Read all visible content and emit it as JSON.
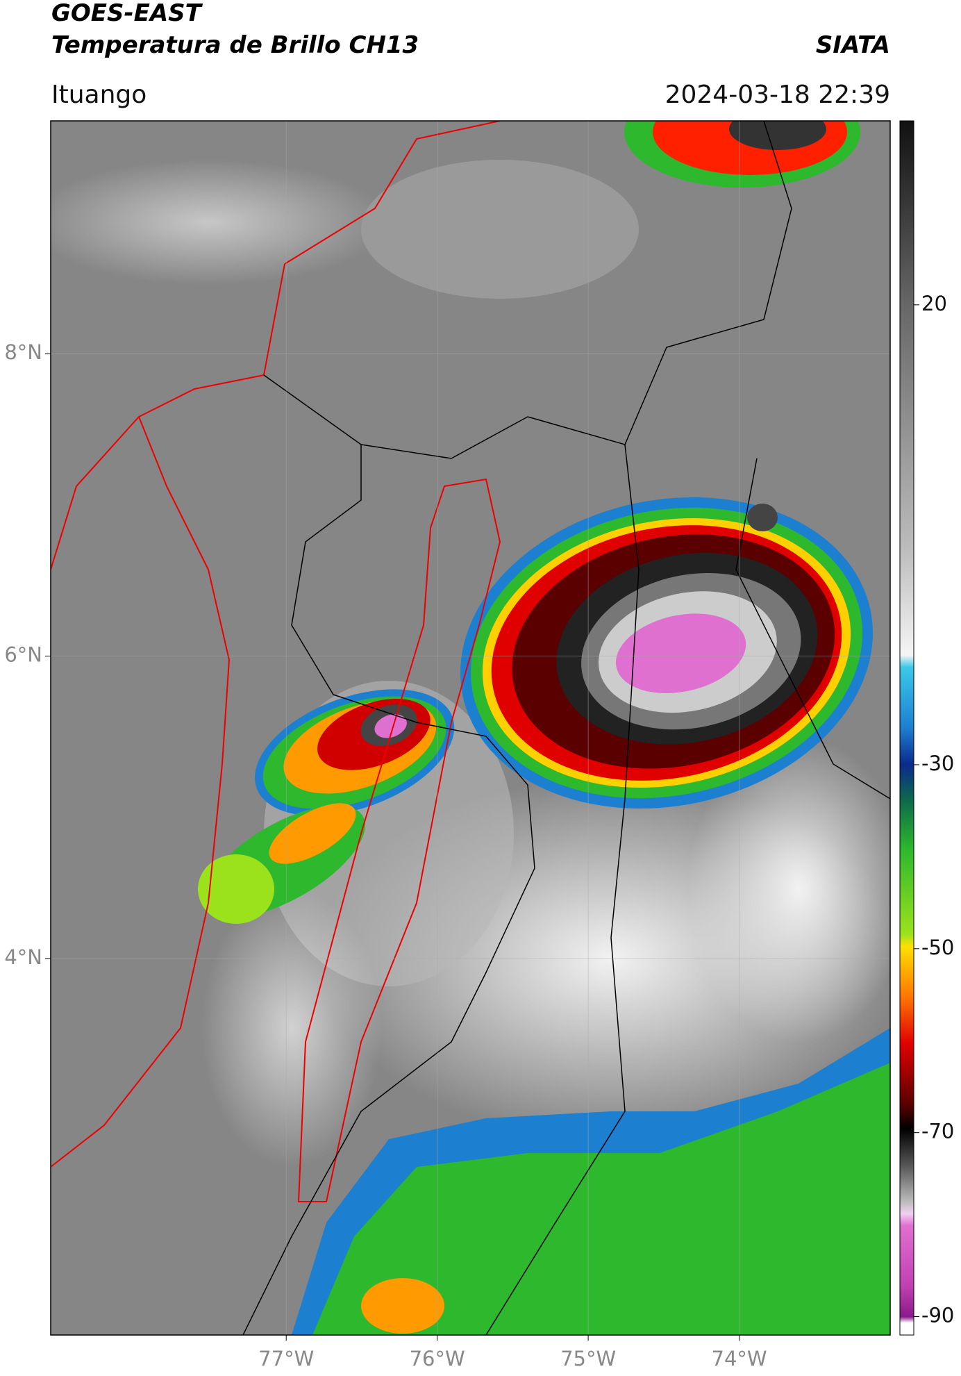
{
  "header": {
    "title": "GOES-EAST",
    "subtitle": "Temperatura de Brillo CH13",
    "source": "SIATA",
    "location": "Ituango",
    "timestamp": "2024-03-18 22:39"
  },
  "map": {
    "xlim": [
      -78.56,
      -73.0
    ],
    "ylim": [
      1.51,
      9.54
    ],
    "xticks": [
      {
        "value": -77,
        "label": "77°W"
      },
      {
        "value": -76,
        "label": "76°W"
      },
      {
        "value": -75,
        "label": "75°W"
      },
      {
        "value": -74,
        "label": "74°W"
      }
    ],
    "yticks": [
      {
        "value": 8,
        "label": "8°N"
      },
      {
        "value": 6,
        "label": "6°N"
      },
      {
        "value": 4,
        "label": "4°N"
      }
    ]
  },
  "colorbar": {
    "lim": [
      -92,
      40
    ],
    "ticks": [
      20,
      -30,
      -50,
      -70,
      -90
    ]
  }
}
